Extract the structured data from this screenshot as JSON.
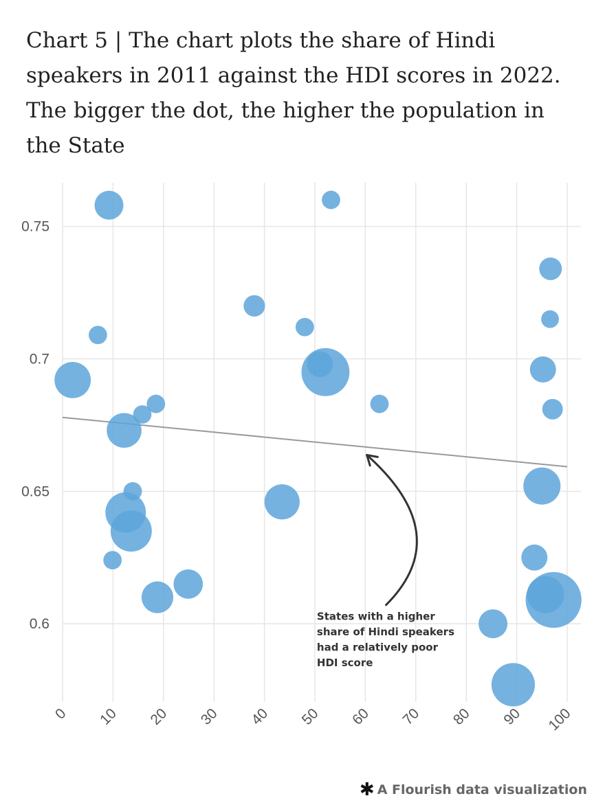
{
  "title": "Chart 5 | The chart plots the share of Hindi speakers in 2011 against the HDI scores in 2022. The bigger the dot, the higher the population in the State",
  "chart_data": {
    "type": "scatter",
    "xlim": [
      0,
      100
    ],
    "ylim": [
      0.5705,
      0.7665
    ],
    "x_ticks": [
      0,
      10,
      20,
      30,
      40,
      50,
      60,
      70,
      80,
      90,
      100
    ],
    "x_tick_labels": [
      "0",
      "10",
      "20",
      "30",
      "40",
      "50",
      "60",
      "70",
      "80",
      "90",
      "100"
    ],
    "y_ticks": [
      0.6,
      0.65,
      0.7,
      0.75
    ],
    "y_tick_labels": [
      "0.6",
      "0.65",
      "0.7",
      "0.75"
    ],
    "grid": true,
    "point_color": "#5da5da",
    "trend_color": "#999999",
    "points": [
      {
        "x": 9.2,
        "y": 0.758,
        "size": 0.35
      },
      {
        "x": 53.2,
        "y": 0.76,
        "size": 0.06
      },
      {
        "x": 96.7,
        "y": 0.734,
        "size": 0.15
      },
      {
        "x": 38.0,
        "y": 0.72,
        "size": 0.12
      },
      {
        "x": 96.6,
        "y": 0.715,
        "size": 0.05
      },
      {
        "x": 48.0,
        "y": 0.712,
        "size": 0.06
      },
      {
        "x": 7.0,
        "y": 0.709,
        "size": 0.06
      },
      {
        "x": 2.0,
        "y": 0.692,
        "size": 0.7
      },
      {
        "x": 51.0,
        "y": 0.698,
        "size": 0.25
      },
      {
        "x": 52.1,
        "y": 0.695,
        "size": 1.5
      },
      {
        "x": 95.2,
        "y": 0.696,
        "size": 0.25
      },
      {
        "x": 62.8,
        "y": 0.683,
        "size": 0.06
      },
      {
        "x": 18.5,
        "y": 0.683,
        "size": 0.06
      },
      {
        "x": 15.8,
        "y": 0.679,
        "size": 0.06
      },
      {
        "x": 97.1,
        "y": 0.681,
        "size": 0.1
      },
      {
        "x": 12.2,
        "y": 0.673,
        "size": 0.62
      },
      {
        "x": 13.9,
        "y": 0.65,
        "size": 0.06
      },
      {
        "x": 95.0,
        "y": 0.652,
        "size": 0.75
      },
      {
        "x": 43.5,
        "y": 0.646,
        "size": 0.64
      },
      {
        "x": 12.5,
        "y": 0.642,
        "size": 0.95
      },
      {
        "x": 13.6,
        "y": 0.635,
        "size": 1.0
      },
      {
        "x": 9.9,
        "y": 0.624,
        "size": 0.06
      },
      {
        "x": 93.5,
        "y": 0.625,
        "size": 0.25
      },
      {
        "x": 24.9,
        "y": 0.615,
        "size": 0.37
      },
      {
        "x": 18.8,
        "y": 0.61,
        "size": 0.47
      },
      {
        "x": 97.3,
        "y": 0.609,
        "size": 2.2
      },
      {
        "x": 95.7,
        "y": 0.611,
        "size": 0.75
      },
      {
        "x": 85.3,
        "y": 0.6,
        "size": 0.35
      },
      {
        "x": 89.3,
        "y": 0.577,
        "size": 1.15
      }
    ],
    "trend_line": {
      "x": [
        0,
        100
      ],
      "y": [
        0.6779,
        0.6593
      ]
    },
    "annotation": {
      "lines": [
        "States with a higher",
        "share of Hindi speakers",
        "had a relatively poor",
        "HDI score"
      ],
      "text_x": 50.4,
      "text_y": 0.6015,
      "arrow_from": {
        "x": 64.1,
        "y": 0.6071
      },
      "arrow_control": {
        "x": 78.0,
        "y": 0.6336
      },
      "arrow_to": {
        "x": 60.3,
        "y": 0.6637
      }
    }
  },
  "footer": {
    "star": "✱",
    "text": "A Flourish data visualization"
  }
}
